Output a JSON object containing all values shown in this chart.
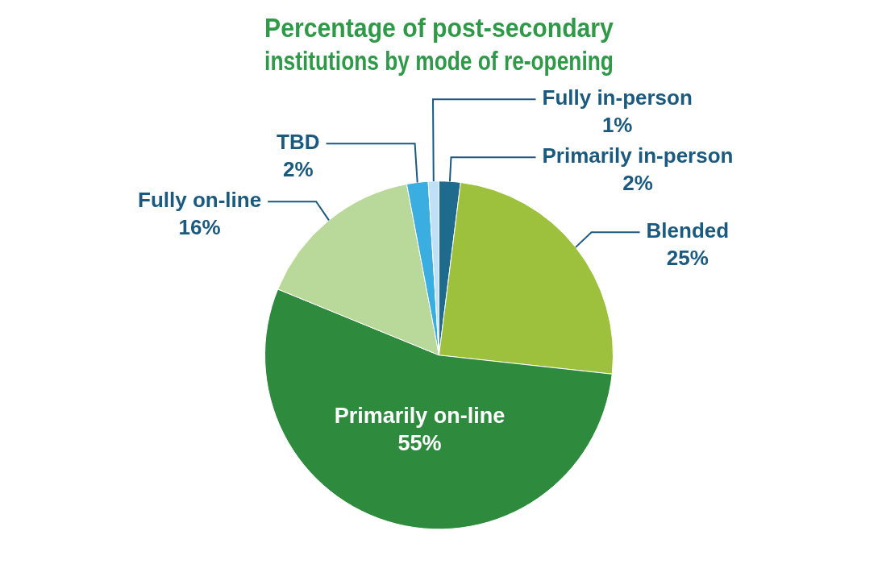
{
  "chart_data": {
    "type": "pie",
    "title": "Percentage of post-secondary\ninstitutions by mode of re-opening",
    "categories": [
      "Primarily in-person",
      "Blended",
      "Primarily on-line",
      "Fully on-line",
      "TBD",
      "Fully in-person"
    ],
    "values": [
      2,
      25,
      55,
      16,
      2,
      1
    ],
    "colors": [
      "#1f6b8e",
      "#9dc13c",
      "#2e8b3e",
      "#b9d99a",
      "#3aaee0",
      "#bfe0f5"
    ],
    "value_labels": [
      "2%",
      "25%",
      "55%",
      "16%",
      "2%",
      "1%"
    ]
  }
}
